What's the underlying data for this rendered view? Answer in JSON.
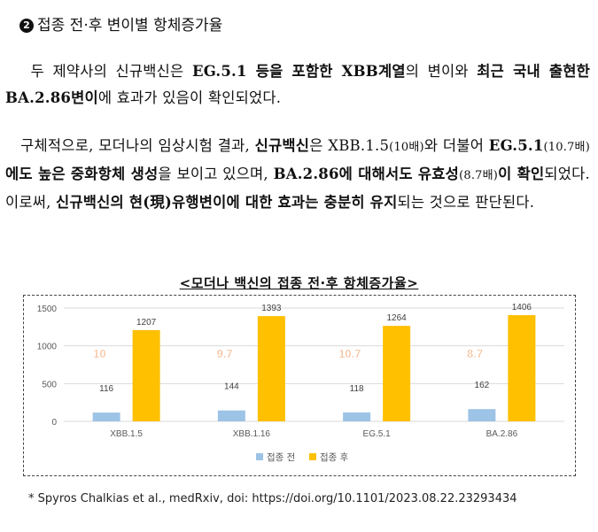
{
  "section": {
    "number": "2",
    "title": "접종 전·후 변이별 항체증가율"
  },
  "para1": {
    "s1": "두 제약사의 신규백신은 ",
    "s2": "EG.5.1 등을 포함한 XBB계열",
    "s3": "의 변이와 ",
    "s4": "최근 국내 출현한 BA.2.86변이",
    "s5": "에 효과가 있음이 확인되었다."
  },
  "para2": {
    "s1": "구체적으로, 모더나의 임상시험 결과, ",
    "s2": "신규백신",
    "s3": "은 XBB.1.5",
    "s4": "(10배)",
    "s5": "와 더불어 ",
    "s6": "EG.5.1",
    "s7": "(10.7배)",
    "s8": "에도 높은 중화항체 생성",
    "s9": "을 보이고 있으며, ",
    "s10": "BA.2.86에 대해서도 유효성",
    "s11": "(8.7배)",
    "s12": "이 확인",
    "s13": "되었다. 이로써, ",
    "s14": "신규백신의 현(現)유행변이에 대한 효과는 충분히 유지",
    "s15": "되는 것으로 판단된다."
  },
  "chart_title": "<모더나 백신의 접종 전·후 항체증가율>",
  "chart_data": {
    "type": "bar",
    "categories": [
      "XBB.1.5",
      "XBB.1.16",
      "EG.5.1",
      "BA.2.86"
    ],
    "series": [
      {
        "name": "접종 전",
        "values": [
          116,
          144,
          118,
          162
        ],
        "color": "#9dc3e6"
      },
      {
        "name": "접종 후",
        "values": [
          1207,
          1393,
          1264,
          1406
        ],
        "color": "#ffc000"
      }
    ],
    "annotations": [
      "10 배",
      "9.7 배",
      "10.7 배",
      "8.7 배"
    ],
    "annotation_color": "#f4b183",
    "yticks": [
      0,
      500,
      1000,
      1500
    ],
    "ylim": [
      0,
      1500
    ],
    "legend": "bottom"
  },
  "footnote": "* Spyros Chalkias et al., medRxiv, doi: https://doi.org/10.1101/2023.08.22.23293434"
}
